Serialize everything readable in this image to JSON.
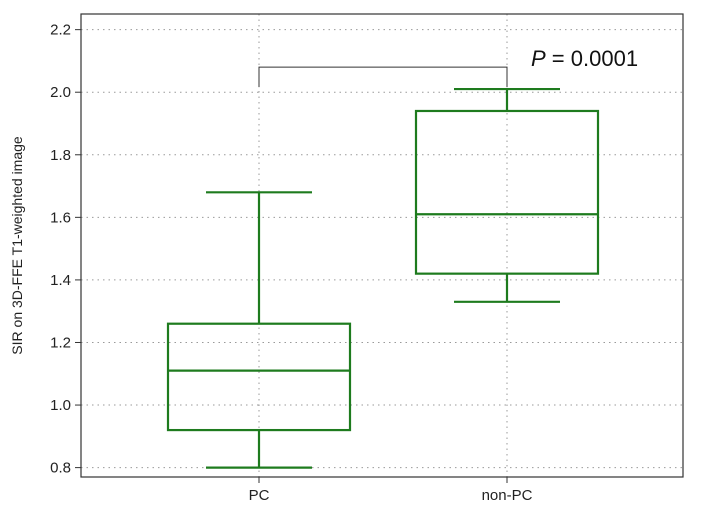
{
  "chart_data": {
    "type": "box",
    "ylabel": "SIR on 3D-FFE T1-weighted image",
    "xlabel": "",
    "ylim": [
      0.77,
      2.25
    ],
    "yticks": [
      0.8,
      1.0,
      1.2,
      1.4,
      1.6,
      1.8,
      2.0,
      2.2
    ],
    "ytick_labels": [
      "0.8",
      "1.0",
      "1.2",
      "1.4",
      "1.6",
      "1.8",
      "2.0",
      "2.2"
    ],
    "grid": true,
    "categories": [
      "PC",
      "non-PC"
    ],
    "boxes": [
      {
        "category": "PC",
        "whisker_low": 0.8,
        "q1": 0.92,
        "median": 1.11,
        "q3": 1.26,
        "whisker_high": 1.68
      },
      {
        "category": "non-PC",
        "whisker_low": 1.33,
        "q1": 1.42,
        "median": 1.61,
        "q3": 1.94,
        "whisker_high": 2.01
      }
    ],
    "box_color": "#1e7b1e",
    "annotation": {
      "p_symbol": "P",
      "text": " = 0.0001",
      "bracket_y": 2.08
    }
  }
}
